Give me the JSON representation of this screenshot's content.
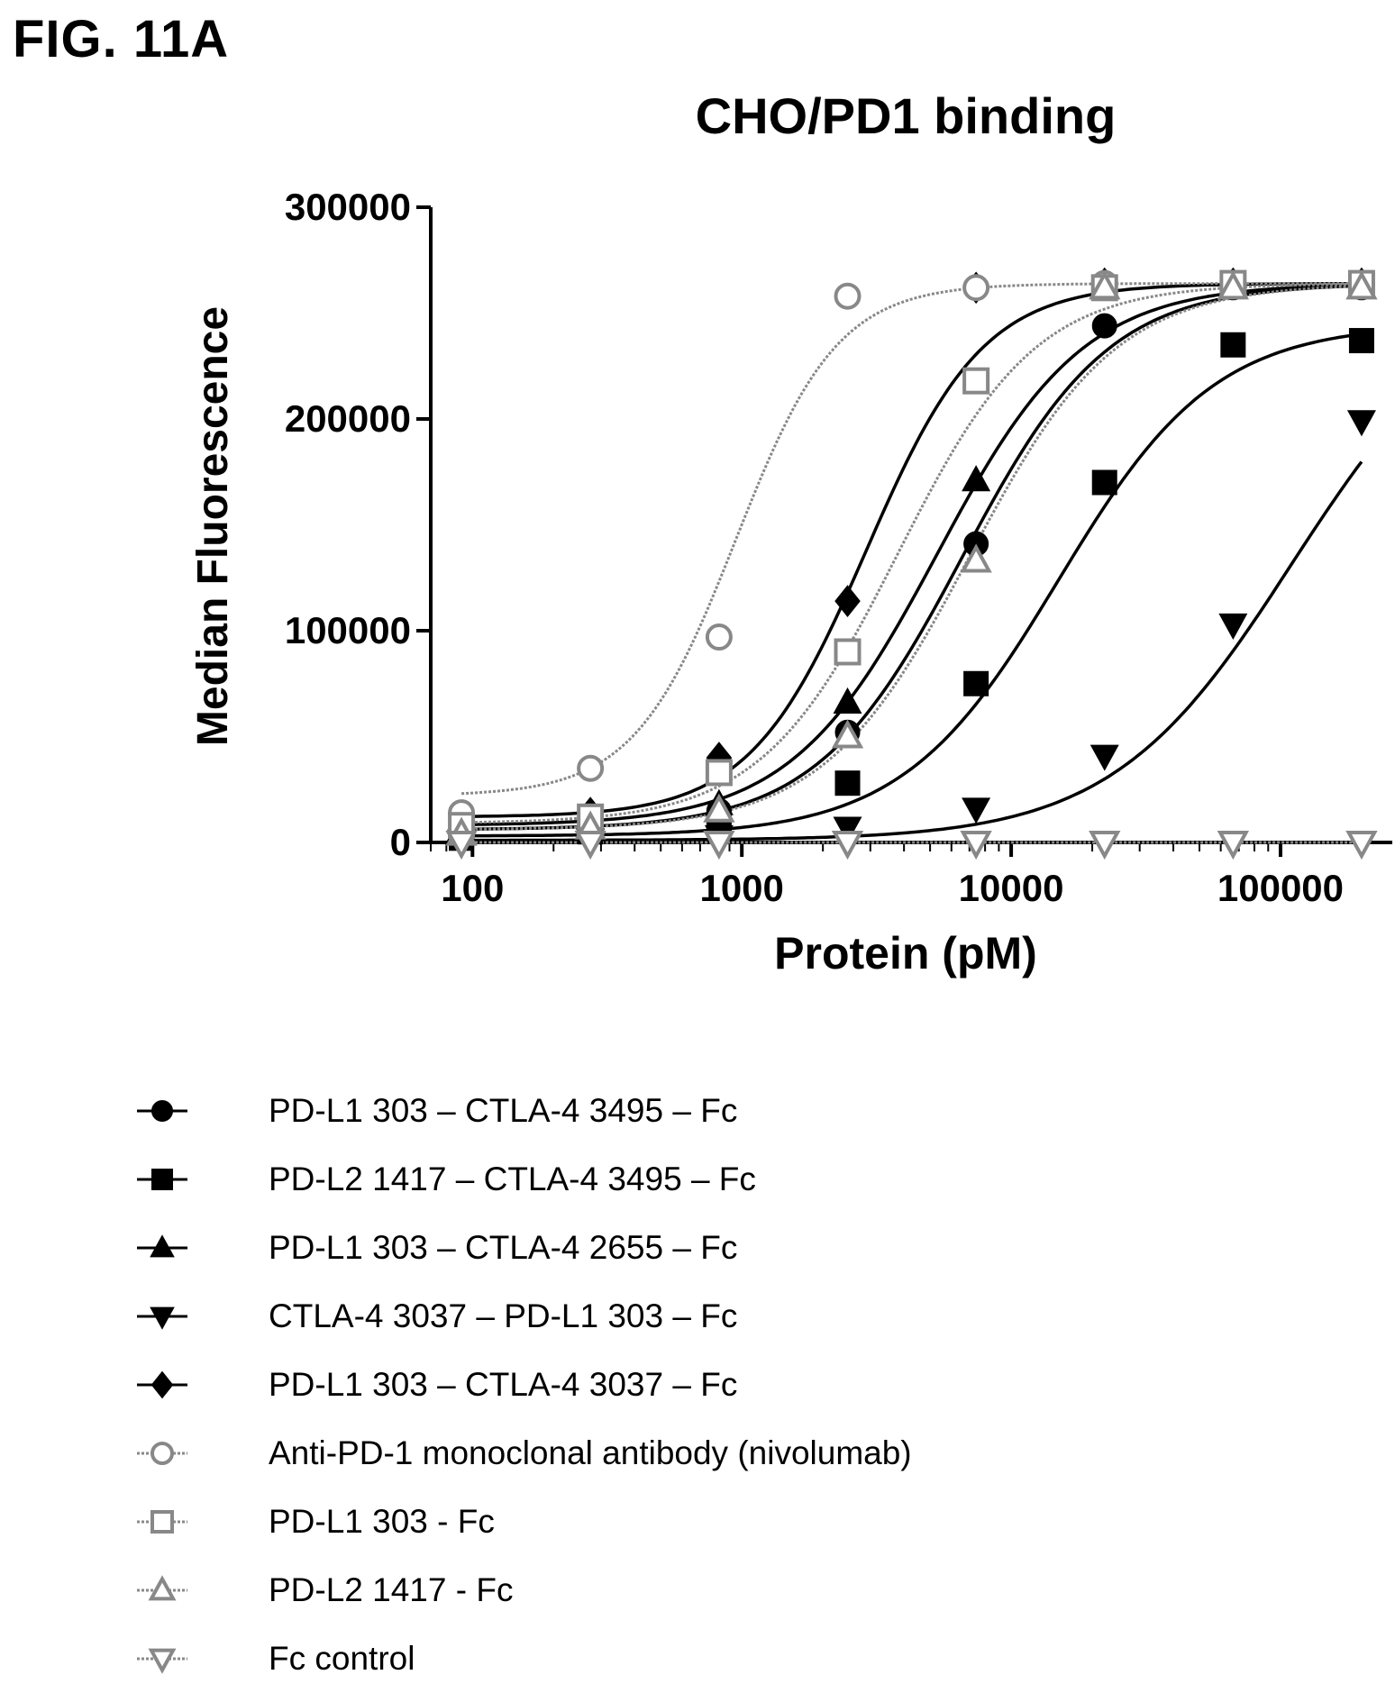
{
  "figure_label": "FIG. 11A",
  "chart_data": {
    "type": "scatter",
    "title": "CHO/PD1 binding",
    "xlabel": "Protein (pM)",
    "ylabel": "Median Fluorescence",
    "x_scale": "log",
    "xlim": [
      70,
      260000
    ],
    "ylim": [
      0,
      300000
    ],
    "x_ticks": [
      100,
      1000,
      10000,
      100000
    ],
    "x_tick_labels": [
      "100",
      "1000",
      "10000",
      "100000"
    ],
    "y_ticks": [
      0,
      100000,
      200000,
      300000
    ],
    "y_tick_labels": [
      "0",
      "100000",
      "200000",
      "300000"
    ],
    "x": [
      91,
      274,
      823,
      2469,
      7407,
      22222,
      66667,
      200000
    ],
    "grid": false,
    "legend_position": "below",
    "series": [
      {
        "name": "PD-L1 303 – CTLA-4 3495 – Fc",
        "marker": "circle-filled",
        "color": "#000000",
        "values": [
          5000,
          8000,
          15000,
          52000,
          141000,
          244000,
          262000,
          262000
        ],
        "fit": {
          "bottom": 6000,
          "top": 264000,
          "ec50": 6600,
          "hill": 1.6
        }
      },
      {
        "name": "PD-L2 1417 – CTLA-4 3495 – Fc",
        "marker": "square-filled",
        "color": "#000000",
        "values": [
          2000,
          5000,
          10000,
          28000,
          75000,
          170000,
          235000,
          237000
        ],
        "fit": {
          "bottom": 3000,
          "top": 245000,
          "ec50": 15000,
          "hill": 1.5
        }
      },
      {
        "name": "PD-L1 303 – CTLA-4 2655 – Fc",
        "marker": "triangle-up-filled",
        "color": "#000000",
        "values": [
          6000,
          11000,
          18000,
          66000,
          171000,
          262000,
          262000,
          262000
        ],
        "fit": {
          "bottom": 8000,
          "top": 264000,
          "ec50": 5300,
          "hill": 1.6
        }
      },
      {
        "name": "CTLA-4 3037 – PD-L1 303 – Fc",
        "marker": "triangle-down-filled",
        "color": "#000000",
        "values": [
          1000,
          1500,
          3000,
          7000,
          16000,
          41000,
          103000,
          199000
        ],
        "fit": {
          "bottom": 1000,
          "top": 262000,
          "ec50": 110000,
          "hill": 1.3
        }
      },
      {
        "name": "PD-L1 303 – CTLA-4 3037 – Fc",
        "marker": "diamond-filled",
        "color": "#000000",
        "values": [
          10000,
          14000,
          40000,
          114000,
          262000,
          264000,
          264000,
          264000
        ],
        "fit": {
          "bottom": 12000,
          "top": 264000,
          "ec50": 2900,
          "hill": 2.0
        }
      },
      {
        "name": "Anti-PD-1 monoclonal antibody (nivolumab)",
        "marker": "circle-open",
        "color": "#888888",
        "values": [
          14000,
          35000,
          97000,
          258000,
          262000,
          264000,
          264000,
          264000
        ],
        "fit": {
          "bottom": 22000,
          "top": 264000,
          "ec50": 950,
          "hill": 2.3
        }
      },
      {
        "name": "PD-L1 303 - Fc",
        "marker": "square-open",
        "color": "#888888",
        "values": [
          8000,
          12000,
          33000,
          90000,
          218000,
          262000,
          264000,
          264000
        ],
        "fit": {
          "bottom": 9000,
          "top": 264000,
          "ec50": 3800,
          "hill": 1.7
        }
      },
      {
        "name": "PD-L2 1417 - Fc",
        "marker": "triangle-up-open",
        "color": "#888888",
        "values": [
          4000,
          7000,
          15000,
          50000,
          133000,
          262000,
          262000,
          262000
        ],
        "fit": {
          "bottom": 6000,
          "top": 264000,
          "ec50": 7000,
          "hill": 1.6
        }
      },
      {
        "name": "Fc control",
        "marker": "triangle-down-open",
        "color": "#888888",
        "values": [
          0,
          0,
          0,
          0,
          0,
          0,
          0,
          0
        ],
        "fit": {
          "bottom": 0,
          "top": 0,
          "ec50": 1000,
          "hill": 1
        }
      }
    ]
  }
}
